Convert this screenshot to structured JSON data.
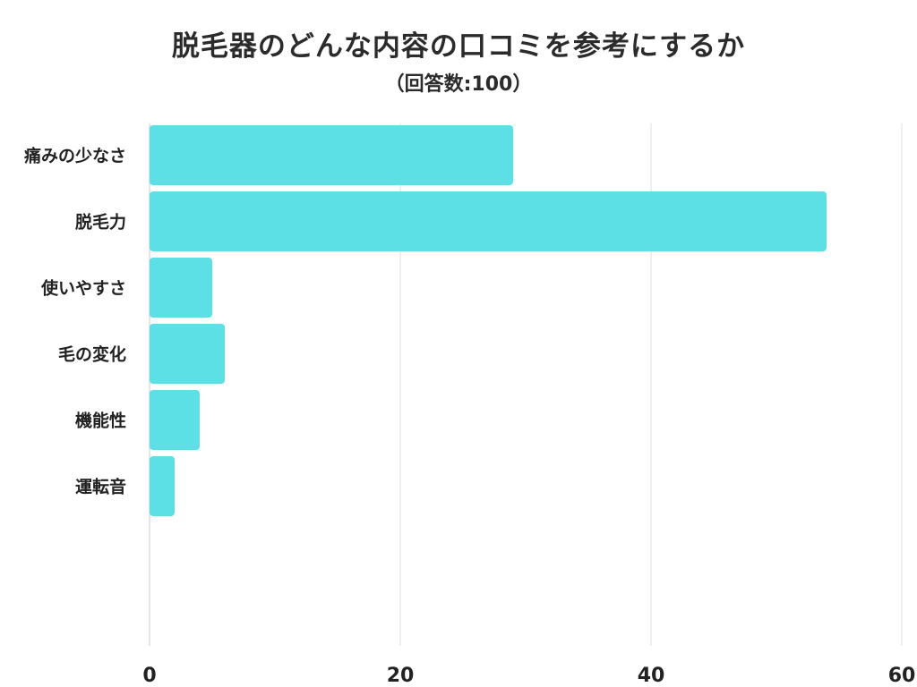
{
  "chart_data": {
    "type": "bar",
    "orientation": "horizontal",
    "title": "脱毛器のどんな内容の口コミを参考にするか",
    "subtitle": "（回答数:100）",
    "categories": [
      "痛みの少なさ",
      "脱毛力",
      "使いやすさ",
      "毛の変化",
      "機能性",
      "運転音"
    ],
    "values": [
      29,
      54,
      5,
      6,
      4,
      2
    ],
    "xlim": [
      0,
      60
    ],
    "xticks": [
      0,
      20,
      40,
      60
    ],
    "xlabel": "",
    "ylabel": "",
    "grid": true,
    "bar_color": "#5de0e5",
    "grid_color": "#dddddd"
  }
}
